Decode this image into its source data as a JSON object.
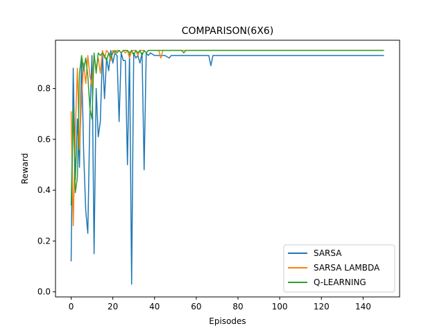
{
  "chart_data": {
    "type": "line",
    "title": "COMPARISON(6X6)",
    "xlabel": "Episodes",
    "ylabel": "Reward",
    "xlim": [
      -7.5,
      157.5
    ],
    "ylim": [
      -0.02,
      0.99
    ],
    "xticks": [
      0,
      20,
      40,
      60,
      80,
      100,
      120,
      140
    ],
    "xtick_labels": [
      "0",
      "20",
      "40",
      "60",
      "80",
      "100",
      "120",
      "140"
    ],
    "yticks": [
      0.0,
      0.2,
      0.4,
      0.6,
      0.8
    ],
    "ytick_labels": [
      "0.0",
      "0.2",
      "0.4",
      "0.6",
      "0.8"
    ],
    "grid": false,
    "legend_position": "lower-right",
    "series": [
      {
        "name": "SARSA",
        "color": "#1f77b4",
        "x": [
          0,
          1,
          2,
          3,
          4,
          5,
          6,
          7,
          8,
          9,
          10,
          11,
          12,
          13,
          14,
          15,
          16,
          17,
          18,
          19,
          20,
          21,
          22,
          23,
          24,
          25,
          26,
          27,
          28,
          29,
          30,
          31,
          32,
          33,
          34,
          35,
          36,
          37,
          38,
          40,
          45,
          47,
          48,
          50,
          65,
          66,
          67,
          68,
          150
        ],
        "values": [
          0.12,
          0.88,
          0.44,
          0.68,
          0.49,
          0.92,
          0.55,
          0.32,
          0.23,
          0.7,
          0.93,
          0.15,
          0.8,
          0.61,
          0.67,
          0.94,
          0.76,
          0.92,
          0.87,
          0.95,
          0.9,
          0.94,
          0.93,
          0.67,
          0.94,
          0.91,
          0.91,
          0.5,
          0.94,
          0.03,
          0.94,
          0.92,
          0.93,
          0.9,
          0.94,
          0.48,
          0.94,
          0.93,
          0.94,
          0.93,
          0.93,
          0.92,
          0.93,
          0.93,
          0.93,
          0.93,
          0.89,
          0.93,
          0.93
        ]
      },
      {
        "name": "SARSA LAMBDA",
        "color": "#ff7f0e",
        "x": [
          0,
          1,
          2,
          3,
          4,
          5,
          6,
          7,
          8,
          9,
          10,
          11,
          12,
          13,
          14,
          15,
          16,
          17,
          18,
          19,
          20,
          21,
          22,
          23,
          24,
          25,
          26,
          27,
          28,
          29,
          30,
          31,
          32,
          33,
          34,
          35,
          36,
          37,
          38,
          40,
          42,
          43,
          44,
          46,
          150
        ],
        "values": [
          0.71,
          0.26,
          0.63,
          0.88,
          0.56,
          0.76,
          0.9,
          0.82,
          0.93,
          0.85,
          0.81,
          0.93,
          0.88,
          0.92,
          0.86,
          0.95,
          0.92,
          0.95,
          0.94,
          0.91,
          0.95,
          0.94,
          0.95,
          0.95,
          0.94,
          0.95,
          0.94,
          0.95,
          0.92,
          0.95,
          0.95,
          0.95,
          0.93,
          0.95,
          0.95,
          0.95,
          0.94,
          0.95,
          0.95,
          0.95,
          0.95,
          0.92,
          0.95,
          0.95,
          0.95
        ]
      },
      {
        "name": "Q-LEARNING",
        "color": "#2ca02c",
        "x": [
          0,
          1,
          2,
          3,
          4,
          5,
          6,
          7,
          8,
          9,
          10,
          11,
          12,
          13,
          14,
          15,
          16,
          17,
          18,
          19,
          20,
          21,
          22,
          23,
          24,
          25,
          26,
          27,
          28,
          29,
          30,
          31,
          32,
          33,
          34,
          35,
          36,
          37,
          38,
          40,
          50,
          53,
          54,
          55,
          150
        ],
        "values": [
          0.34,
          0.72,
          0.39,
          0.45,
          0.86,
          0.93,
          0.87,
          0.92,
          0.85,
          0.72,
          0.68,
          0.94,
          0.86,
          0.94,
          0.93,
          0.94,
          0.93,
          0.91,
          0.94,
          0.92,
          0.94,
          0.95,
          0.94,
          0.95,
          0.94,
          0.95,
          0.95,
          0.95,
          0.94,
          0.95,
          0.93,
          0.95,
          0.94,
          0.95,
          0.93,
          0.95,
          0.94,
          0.95,
          0.95,
          0.95,
          0.95,
          0.95,
          0.94,
          0.95,
          0.95
        ]
      }
    ]
  }
}
